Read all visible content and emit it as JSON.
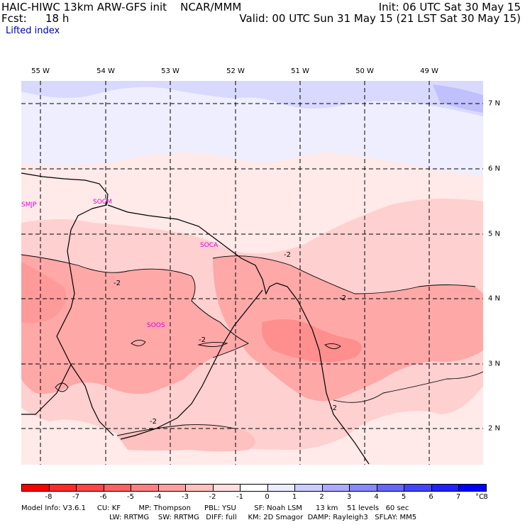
{
  "header": {
    "title_left": "HAIC-HIWC 13km ARW-GFS init    NCAR/MMM",
    "fcst_label": "Fcst:",
    "fcst_value": "18 h",
    "init": "Init: 06 UTC Sat 30 May 15",
    "valid": "Valid: 00 UTC Sun 31 May 15 (21 LST Sat 30 May 15)",
    "field": "Lifted index"
  },
  "axes": {
    "lon_labels": [
      "55 W",
      "54 W",
      "53 W",
      "52 W",
      "51 W",
      "50 W",
      "49 W"
    ],
    "lat_labels": [
      "7 N",
      "6 N",
      "5 N",
      "4 N",
      "3 N",
      "2 N"
    ]
  },
  "stations": [
    "SMJP",
    "SOCM",
    "SOCA",
    "SOOS"
  ],
  "contour_labels": [
    "-2",
    "-2",
    "-2",
    "-2",
    "-2",
    "-2"
  ],
  "colorbar": {
    "ticks": [
      "-8",
      "-7",
      "-6",
      "-5",
      "-4",
      "-3",
      "-2",
      "-1",
      "0",
      "1",
      "2",
      "3",
      "4",
      "5",
      "6",
      "7",
      "8"
    ],
    "unit": "°C",
    "colors": [
      "#ff0000",
      "#ff2a2a",
      "#ff4545",
      "#ff6060",
      "#ff8080",
      "#ffa0a0",
      "#ffc0c0",
      "#ffdede",
      "#ffffff",
      "#ececff",
      "#ccccff",
      "#aaaaff",
      "#8888ff",
      "#6666ff",
      "#4444ff",
      "#2222ff",
      "#0000ff"
    ]
  },
  "footer": {
    "line1": "Model Info: V3.6.1     CU: KF        MP: Thompson      PBL: YSU        SF: Noah LSM      13 km    51 levels   60 sec",
    "line2": "LW: RRTMG    SW: RRTMG   DIFF: full     KM: 2D Smagor  DAMP: Rayleigh3   SFLAY: MM5"
  }
}
